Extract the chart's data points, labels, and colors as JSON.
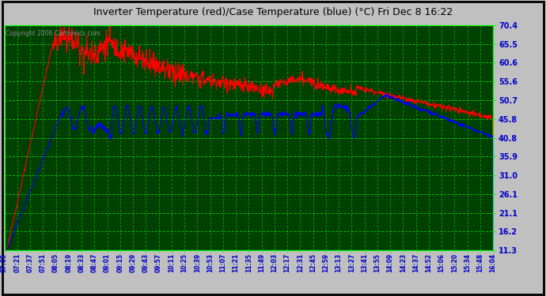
{
  "title": "Inverter Temperature (red)/Case Temperature (blue) (°C) Fri Dec 8 16:22",
  "copyright": "Copyright 2006 Cartronics.com",
  "plot_bg_color": "#006000",
  "grid_color": "#00FF00",
  "y_min": 11.3,
  "y_max": 70.4,
  "y_ticks": [
    11.3,
    16.2,
    21.1,
    26.1,
    31.0,
    35.9,
    40.8,
    45.8,
    50.7,
    55.6,
    60.6,
    65.5,
    70.4
  ],
  "x_labels": [
    "07:05",
    "07:21",
    "07:37",
    "07:51",
    "08:05",
    "08:19",
    "08:33",
    "08:47",
    "09:01",
    "09:15",
    "09:29",
    "09:43",
    "09:57",
    "10:11",
    "10:25",
    "10:39",
    "10:53",
    "11:07",
    "11:21",
    "11:35",
    "11:49",
    "12:03",
    "12:17",
    "12:31",
    "12:45",
    "12:59",
    "13:13",
    "13:27",
    "13:41",
    "13:55",
    "14:09",
    "14:23",
    "14:37",
    "14:52",
    "15:06",
    "15:20",
    "15:34",
    "15:48",
    "16:04"
  ],
  "red_line_color": "#FF0000",
  "blue_line_color": "#0000FF",
  "title_color": "#000000",
  "tick_label_color": "#0000CC",
  "outer_bg": "#C0C0C0",
  "copyright_color": "#888888"
}
